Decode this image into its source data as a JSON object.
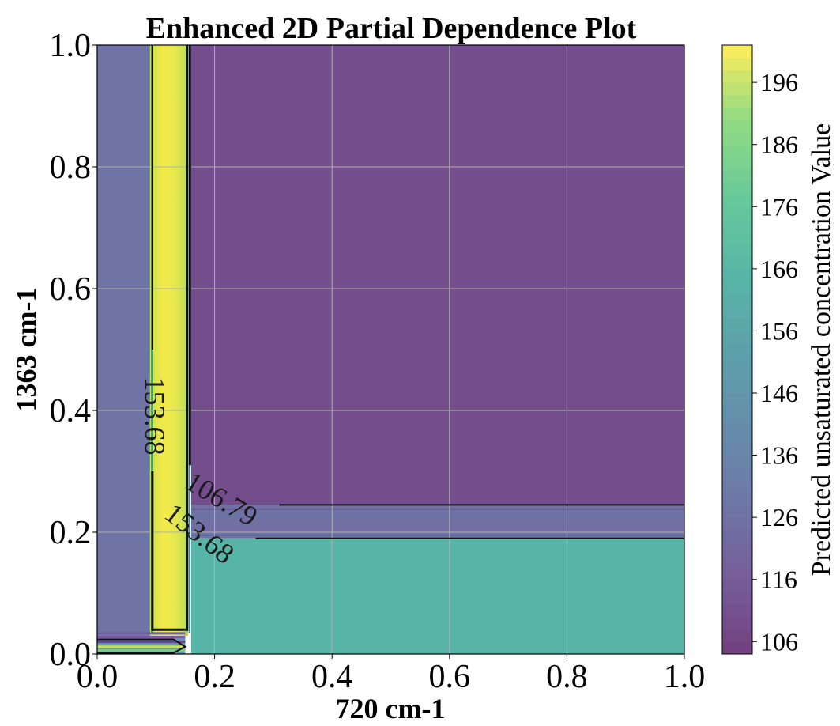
{
  "chart_data": {
    "type": "heatmap",
    "title": "Enhanced 2D Partial Dependence Plot",
    "xlabel": "720 cm-1",
    "ylabel": "1363 cm-1",
    "xlim": [
      0.0,
      1.0
    ],
    "ylim": [
      0.0,
      1.0
    ],
    "x_ticks": [
      "0.0",
      "0.2",
      "0.4",
      "0.6",
      "0.8",
      "1.0"
    ],
    "y_ticks": [
      "0.0",
      "0.2",
      "0.4",
      "0.6",
      "0.8",
      "1.0"
    ],
    "grid": true,
    "colormap": "viridis",
    "colorbar": {
      "label": "Predicted unsaturated concentration Value",
      "range": [
        104,
        202
      ],
      "ticks": [
        "106",
        "116",
        "126",
        "136",
        "146",
        "156",
        "166",
        "176",
        "186",
        "196"
      ]
    },
    "regions": [
      {
        "name": "left-strip",
        "x": [
          0.0,
          0.09
        ],
        "y": [
          0.0,
          1.0
        ],
        "value": 127
      },
      {
        "name": "peak-vertical-band",
        "x": [
          0.09,
          0.155
        ],
        "y": [
          0.03,
          1.0
        ],
        "value": 196
      },
      {
        "name": "upper-right-plateau",
        "x": [
          0.16,
          1.0
        ],
        "y": [
          0.245,
          1.0
        ],
        "value": 110
      },
      {
        "name": "middle-transition-band",
        "x": [
          0.16,
          1.0
        ],
        "y": [
          0.19,
          0.245
        ],
        "value": 125
      },
      {
        "name": "lower-right-plateau",
        "x": [
          0.16,
          1.0
        ],
        "y": [
          0.0,
          0.19
        ],
        "value": 165
      },
      {
        "name": "bottom-left-corner",
        "x": [
          0.0,
          0.15
        ],
        "y": [
          0.0,
          0.03
        ],
        "value": 150
      }
    ],
    "contour_lines": [
      {
        "label": "153.68",
        "value": 153.68
      },
      {
        "label": "106.79",
        "value": 106.79
      },
      {
        "label": "153.68",
        "value": 153.68
      }
    ]
  }
}
